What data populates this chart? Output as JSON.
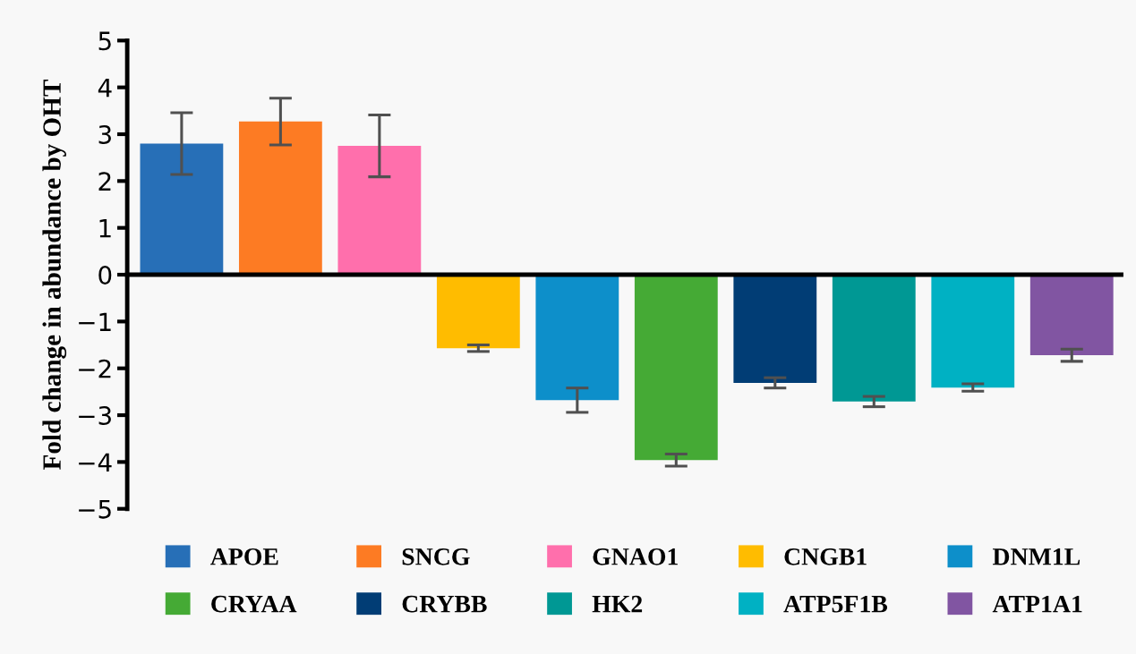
{
  "chart_data": {
    "type": "bar",
    "ylabel": "Fold change in abundance by OHT",
    "categories": [
      null,
      null,
      null,
      null,
      null,
      null,
      null,
      null,
      null,
      null
    ],
    "series": [
      {
        "name": "APOE",
        "color": "#276fb7",
        "values": [
          2.8,
          null,
          null,
          null,
          null,
          null,
          null,
          null,
          null,
          null
        ],
        "errors": [
          0.66,
          null,
          null,
          null,
          null,
          null,
          null,
          null,
          null,
          null
        ]
      },
      {
        "name": "SNCG",
        "color": "#fd7b23",
        "values": [
          null,
          3.27,
          null,
          null,
          null,
          null,
          null,
          null,
          null,
          null
        ],
        "errors": [
          null,
          0.5,
          null,
          null,
          null,
          null,
          null,
          null,
          null,
          null
        ]
      },
      {
        "name": "GNAO1",
        "color": "#ff6fac",
        "values": [
          null,
          null,
          2.75,
          null,
          null,
          null,
          null,
          null,
          null,
          null
        ],
        "errors": [
          null,
          null,
          0.66,
          null,
          null,
          null,
          null,
          null,
          null,
          null
        ]
      },
      {
        "name": "CNGB1",
        "color": "#ffbc00",
        "values": [
          null,
          null,
          null,
          -1.57,
          null,
          null,
          null,
          null,
          null,
          null
        ],
        "errors": [
          null,
          null,
          null,
          0.07,
          null,
          null,
          null,
          null,
          null,
          null
        ]
      },
      {
        "name": "DNM1L",
        "color": "#0d8fca",
        "values": [
          null,
          null,
          null,
          null,
          -2.68,
          null,
          null,
          null,
          null,
          null
        ],
        "errors": [
          null,
          null,
          null,
          null,
          0.26,
          null,
          null,
          null,
          null,
          null
        ]
      },
      {
        "name": "CRYAA",
        "color": "#45aa35",
        "values": [
          null,
          null,
          null,
          null,
          null,
          -3.96,
          null,
          null,
          null,
          null
        ],
        "errors": [
          null,
          null,
          null,
          null,
          null,
          0.13,
          null,
          null,
          null,
          null
        ]
      },
      {
        "name": "CRYBB",
        "color": "#013d75",
        "values": [
          null,
          null,
          null,
          null,
          null,
          null,
          -2.31,
          null,
          null,
          null
        ],
        "errors": [
          null,
          null,
          null,
          null,
          null,
          null,
          0.11,
          null,
          null,
          null
        ]
      },
      {
        "name": "HK2",
        "color": "#009894",
        "values": [
          null,
          null,
          null,
          null,
          null,
          null,
          null,
          -2.71,
          null,
          null
        ],
        "errors": [
          null,
          null,
          null,
          null,
          null,
          null,
          null,
          0.11,
          null,
          null
        ]
      },
      {
        "name": "ATP5F1B",
        "color": "#00b1c3",
        "values": [
          null,
          null,
          null,
          null,
          null,
          null,
          null,
          null,
          -2.41,
          null
        ],
        "errors": [
          null,
          null,
          null,
          null,
          null,
          null,
          null,
          null,
          0.08,
          null
        ]
      },
      {
        "name": "ATP1A1",
        "color": "#8155a2",
        "values": [
          null,
          null,
          null,
          null,
          null,
          null,
          null,
          null,
          null,
          -1.72
        ],
        "errors": [
          null,
          null,
          null,
          null,
          null,
          null,
          null,
          null,
          null,
          0.13
        ]
      }
    ],
    "ylim": [
      -5,
      5
    ],
    "yticks": [
      5,
      4,
      3,
      2,
      1,
      0,
      {
        "value": -1,
        "label": "−1"
      },
      {
        "value": -2,
        "label": "−2"
      },
      {
        "value": -3,
        "label": "−3"
      },
      {
        "value": -4,
        "label": "−4"
      },
      {
        "value": -5,
        "label": "−5"
      }
    ],
    "tick_labels": "y",
    "legend": "bottom"
  }
}
